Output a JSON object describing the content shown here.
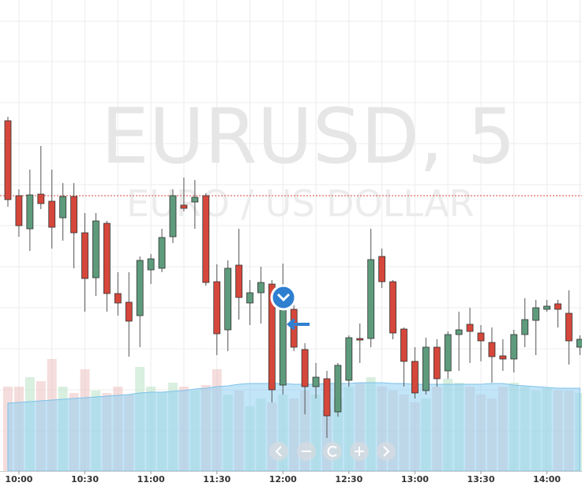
{
  "chart_data": {
    "type": "candlestick",
    "title": "EURUSD, 5",
    "subtitle": "EURO / US DOLLAR",
    "categories": [
      null,
      "10:00",
      null,
      null,
      null,
      null,
      null,
      "10:30",
      null,
      null,
      null,
      null,
      null,
      "11:00",
      null,
      null,
      null,
      null,
      null,
      "11:30",
      null,
      null,
      null,
      null,
      null,
      "12:00",
      null,
      null,
      null,
      null,
      null,
      "12:30",
      null,
      null,
      null,
      null,
      null,
      "13:00",
      null,
      null,
      null,
      null,
      null,
      "13:30",
      null,
      null,
      null,
      null,
      null,
      "14:00",
      null,
      null,
      null
    ],
    "open": [
      444,
      349,
      307,
      351,
      342,
      321,
      348,
      302,
      245,
      314,
      225,
      214,
      197,
      255,
      257,
      297,
      337,
      341,
      349,
      240,
      179,
      261,
      213,
      226,
      237,
      109,
      205,
      154,
      107,
      117,
      75,
      115,
      168,
      168,
      272,
      240,
      180,
      139,
      102,
      157,
      127,
      173,
      186,
      175,
      163,
      146,
      142,
      173,
      191,
      205,
      212,
      200,
      157
    ],
    "high": [
      449,
      357,
      382,
      412,
      382,
      365,
      365,
      327,
      327,
      317,
      252,
      252,
      272,
      275,
      307,
      357,
      372,
      369,
      352,
      262,
      267,
      307,
      242,
      259,
      242,
      263,
      222,
      162,
      137,
      127,
      137,
      172,
      187,
      307,
      282,
      242,
      182,
      157,
      169,
      167,
      177,
      202,
      207,
      185,
      182,
      167,
      179,
      219,
      217,
      217,
      217,
      229,
      172
    ],
    "low": [
      335,
      297,
      279,
      332,
      282,
      292,
      257,
      202,
      222,
      202,
      197,
      145,
      157,
      237,
      252,
      289,
      329,
      307,
      235,
      147,
      152,
      192,
      185,
      187,
      87,
      97,
      152,
      72,
      92,
      42,
      69,
      107,
      137,
      157,
      232,
      167,
      107,
      92,
      97,
      107,
      117,
      127,
      137,
      139,
      112,
      127,
      125,
      157,
      147,
      202,
      182,
      135,
      147
    ],
    "close": [
      344,
      311,
      350,
      339,
      309,
      348,
      302,
      244,
      317,
      225,
      213,
      190,
      267,
      269,
      296,
      349,
      333,
      347,
      239,
      174,
      257,
      220,
      226,
      239,
      103,
      204,
      157,
      107,
      119,
      70,
      134,
      169,
      166,
      268,
      240,
      175,
      139,
      99,
      157,
      117,
      173,
      179,
      177,
      165,
      145,
      142,
      173,
      192,
      207,
      209,
      205,
      165,
      167
    ],
    "volume": [
      107,
      107,
      119,
      114,
      142,
      107,
      99,
      129,
      102,
      99,
      107,
      97,
      132,
      107,
      100,
      112,
      107,
      102,
      109,
      129,
      97,
      102,
      82,
      92,
      87,
      97,
      92,
      102,
      97,
      77,
      92,
      107,
      112,
      119,
      107,
      102,
      97,
      87,
      92,
      107,
      117,
      112,
      107,
      97,
      92,
      107,
      112,
      107,
      102,
      105,
      102,
      102,
      99
    ],
    "volume_ma": [
      86,
      87,
      88,
      89,
      90,
      91,
      92,
      93,
      94,
      95,
      96,
      97,
      99,
      100,
      100,
      101,
      102,
      104,
      105,
      107,
      108,
      110,
      111,
      111,
      111,
      111,
      110,
      110,
      110,
      111,
      111,
      111,
      112,
      112,
      112,
      111,
      111,
      110,
      110,
      110,
      110,
      110,
      110,
      110,
      111,
      111,
      109,
      108,
      107,
      106,
      105,
      105,
      105
    ],
    "price_line": 349,
    "ylim": [
      0,
      597
    ],
    "yticks": [
      570,
      519,
      467,
      415,
      363,
      311,
      259,
      207,
      155,
      103,
      51
    ],
    "grid": true,
    "up_color": "#5e9b7c",
    "down_color": "#d6473b",
    "volume_ma_color": "#8fd0f2"
  }
}
